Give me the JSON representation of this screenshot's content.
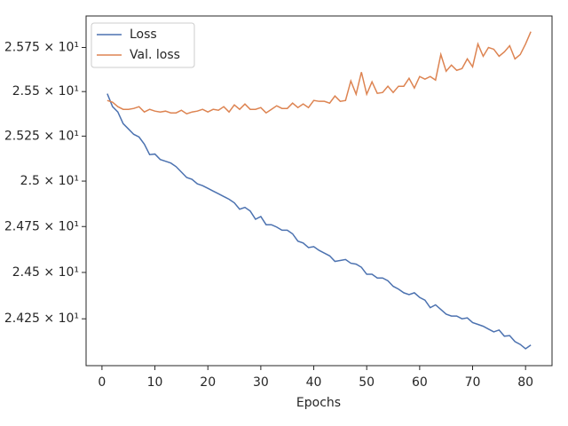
{
  "chart_data": {
    "type": "line",
    "xlabel": "Epochs",
    "x": [
      1,
      2,
      3,
      4,
      5,
      6,
      7,
      8,
      9,
      10,
      11,
      12,
      13,
      14,
      15,
      16,
      17,
      18,
      19,
      20,
      21,
      22,
      23,
      24,
      25,
      26,
      27,
      28,
      29,
      30,
      31,
      32,
      33,
      34,
      35,
      36,
      37,
      38,
      39,
      40,
      41,
      42,
      43,
      44,
      45,
      46,
      47,
      48,
      49,
      50,
      51,
      52,
      53,
      54,
      55,
      56,
      57,
      58,
      59,
      60,
      61,
      62,
      63,
      64,
      65,
      66,
      67,
      68,
      69,
      70,
      71,
      72,
      73,
      74,
      75,
      76,
      77,
      78,
      79,
      80,
      81
    ],
    "series": [
      {
        "name": "Loss",
        "color": "#4c72b0",
        "values": [
          25.488,
          25.415,
          25.385,
          25.32,
          25.29,
          25.26,
          25.245,
          25.205,
          25.147,
          25.15,
          25.12,
          25.11,
          25.1,
          25.08,
          25.05,
          25.02,
          25.01,
          24.985,
          24.975,
          24.96,
          24.945,
          24.93,
          24.915,
          24.9,
          24.88,
          24.845,
          24.855,
          24.835,
          24.79,
          24.805,
          24.76,
          24.76,
          24.747,
          24.73,
          24.73,
          24.71,
          24.67,
          24.66,
          24.635,
          24.64,
          24.62,
          24.605,
          24.59,
          24.56,
          24.565,
          24.57,
          24.55,
          24.545,
          24.528,
          24.49,
          24.49,
          24.47,
          24.47,
          24.455,
          24.425,
          24.41,
          24.39,
          24.38,
          24.39,
          24.365,
          24.35,
          24.31,
          24.325,
          24.3,
          24.275,
          24.265,
          24.265,
          24.25,
          24.255,
          24.23,
          24.22,
          24.21,
          24.195,
          24.18,
          24.19,
          24.157,
          24.16,
          24.128,
          24.113,
          24.09,
          24.11
        ]
      },
      {
        "name": "Val. loss",
        "color": "#dd8452",
        "values": [
          25.45,
          25.44,
          25.415,
          25.4,
          25.4,
          25.405,
          25.415,
          25.385,
          25.4,
          25.39,
          25.385,
          25.39,
          25.38,
          25.38,
          25.395,
          25.375,
          25.385,
          25.39,
          25.4,
          25.385,
          25.4,
          25.395,
          25.415,
          25.385,
          25.425,
          25.4,
          25.43,
          25.4,
          25.4,
          25.41,
          25.38,
          25.4,
          25.42,
          25.405,
          25.405,
          25.435,
          25.41,
          25.43,
          25.41,
          25.45,
          25.445,
          25.445,
          25.435,
          25.475,
          25.445,
          25.45,
          25.56,
          25.485,
          25.61,
          25.485,
          25.555,
          25.49,
          25.495,
          25.53,
          25.495,
          25.53,
          25.53,
          25.575,
          25.52,
          25.585,
          25.57,
          25.585,
          25.565,
          25.71,
          25.615,
          25.65,
          25.62,
          25.63,
          25.685,
          25.64,
          25.77,
          25.7,
          25.75,
          25.74,
          25.7,
          25.725,
          25.76,
          25.685,
          25.71,
          25.77,
          25.84
        ]
      }
    ],
    "xlim": [
      -3,
      85
    ],
    "xticks": [
      0,
      10,
      20,
      30,
      40,
      50,
      60,
      70,
      80
    ],
    "ylim": [
      24.0,
      25.93
    ],
    "log_y": true,
    "yticks": [
      {
        "value": 24.25,
        "label": "2.425 × 10¹"
      },
      {
        "value": 24.5,
        "label": "2.45 × 10¹"
      },
      {
        "value": 24.75,
        "label": "2.475 × 10¹"
      },
      {
        "value": 25,
        "label": "2.5 × 10¹"
      },
      {
        "value": 25.25,
        "label": "2.525 × 10¹"
      },
      {
        "value": 25.5,
        "label": "2.55 × 10¹"
      },
      {
        "value": 25.75,
        "label": "2.575 × 10¹"
      }
    ],
    "legend": "upper left"
  }
}
